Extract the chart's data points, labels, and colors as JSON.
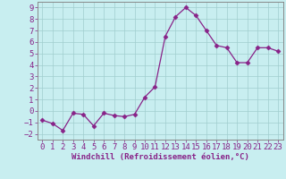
{
  "x": [
    0,
    1,
    2,
    3,
    4,
    5,
    6,
    7,
    8,
    9,
    10,
    11,
    12,
    13,
    14,
    15,
    16,
    17,
    18,
    19,
    20,
    21,
    22,
    23
  ],
  "y": [
    -0.8,
    -1.1,
    -1.7,
    -0.2,
    -0.3,
    -1.3,
    -0.2,
    -0.4,
    -0.5,
    -0.3,
    1.2,
    2.1,
    6.5,
    8.2,
    9.0,
    8.3,
    7.0,
    5.7,
    5.5,
    4.2,
    4.2,
    5.5,
    5.5,
    5.2
  ],
  "line_color": "#882288",
  "marker": "D",
  "marker_size": 2.5,
  "bg_color": "#c8eef0",
  "grid_color": "#a0cece",
  "xlabel": "Windchill (Refroidissement éolien,°C)",
  "xlabel_color": "#882288",
  "tick_color": "#882288",
  "spine_color": "#888888",
  "xlim": [
    -0.5,
    23.5
  ],
  "ylim": [
    -2.5,
    9.5
  ],
  "yticks": [
    -2,
    -1,
    0,
    1,
    2,
    3,
    4,
    5,
    6,
    7,
    8,
    9
  ],
  "xticks": [
    0,
    1,
    2,
    3,
    4,
    5,
    6,
    7,
    8,
    9,
    10,
    11,
    12,
    13,
    14,
    15,
    16,
    17,
    18,
    19,
    20,
    21,
    22,
    23
  ],
  "tick_fontsize": 6.5,
  "xlabel_fontsize": 6.5
}
